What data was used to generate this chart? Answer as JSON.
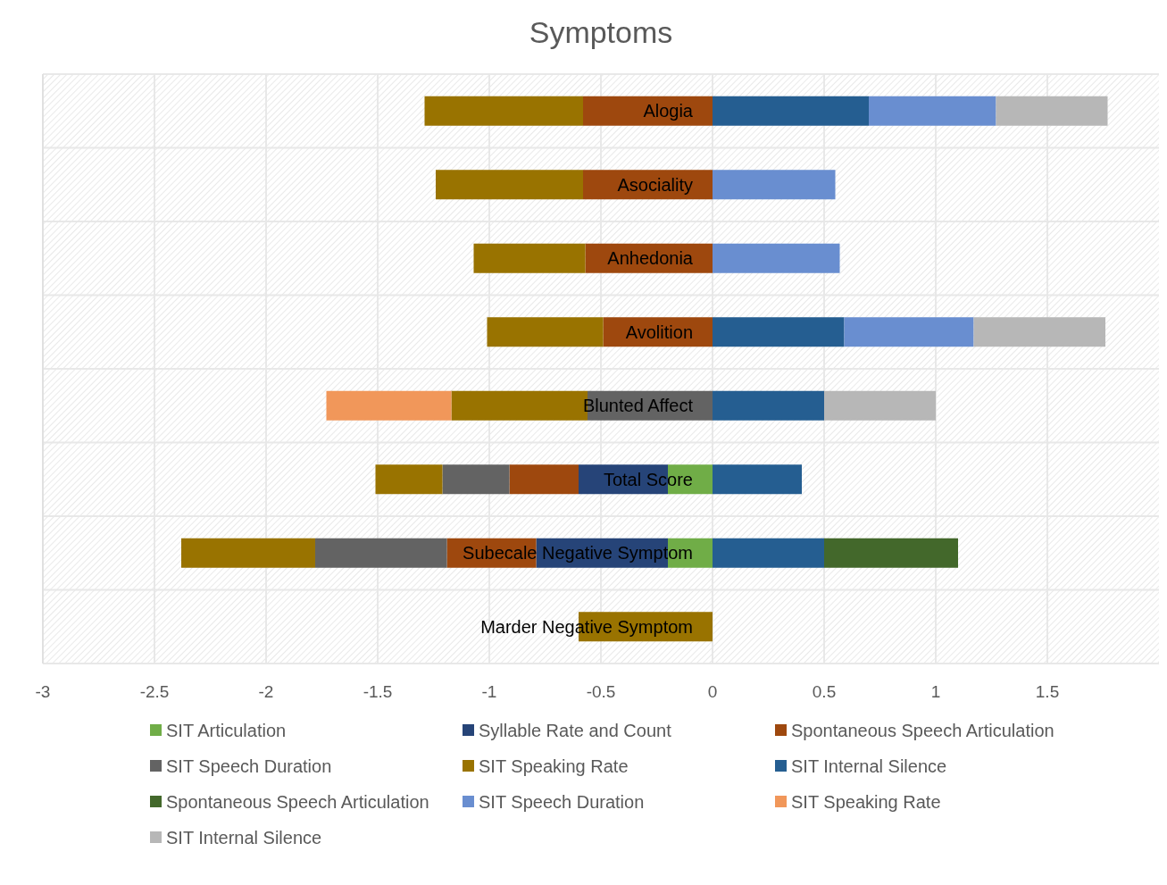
{
  "chart_data": {
    "type": "bar",
    "title": "Symptoms",
    "orientation": "horizontal",
    "stacked": true,
    "grid": true,
    "legend": "bottom",
    "categories": [
      "Alogia",
      "Asociality",
      "Anhedonia",
      "Avolition",
      "Blunted Affect",
      "Total Score",
      "Subecale Negative Symptom",
      "Marder Negative Symptom"
    ],
    "xlim": [
      -3,
      2
    ],
    "xticks": [
      -3,
      -2.5,
      -2,
      -1.5,
      -1,
      -0.5,
      0,
      0.5,
      1,
      1.5
    ],
    "series": [
      {
        "name": "SIT Articulation",
        "color": "#70ad47",
        "values": [
          null,
          null,
          null,
          null,
          null,
          -0.2,
          -0.2,
          null
        ]
      },
      {
        "name": "Syllable Rate and Count",
        "color": "#264478",
        "values": [
          null,
          null,
          null,
          null,
          null,
          -0.4,
          -0.59,
          null
        ]
      },
      {
        "name": "Spontaneous Speech Articulation",
        "color": "#9e480e",
        "values": [
          -0.58,
          -0.58,
          -0.57,
          -0.49,
          null,
          -0.31,
          -0.4,
          null
        ]
      },
      {
        "name": "SIT Speech Duration",
        "color": "#636363",
        "values": [
          null,
          null,
          null,
          null,
          -0.56,
          -0.3,
          -0.59,
          null
        ]
      },
      {
        "name": "SIT Speaking Rate",
        "color": "#997300",
        "values": [
          -0.71,
          -0.66,
          -0.5,
          -0.52,
          -0.61,
          -0.3,
          -0.6,
          -0.6
        ]
      },
      {
        "name": "SIT Internal Silence",
        "color": "#255e91",
        "values": [
          0.7,
          null,
          null,
          0.59,
          0.5,
          0.4,
          0.5,
          null
        ]
      },
      {
        "name": "Spontaneous Speech Articulation",
        "color": "#43682b",
        "values": [
          null,
          null,
          null,
          null,
          null,
          null,
          0.6,
          null
        ]
      },
      {
        "name": "SIT Speech Duration",
        "color": "#698ed0",
        "values": [
          0.57,
          0.55,
          0.57,
          0.58,
          null,
          null,
          null,
          null
        ]
      },
      {
        "name": "SIT Speaking Rate",
        "color": "#f1975a",
        "values": [
          null,
          null,
          null,
          null,
          -0.56,
          null,
          null,
          null
        ]
      },
      {
        "name": "SIT Internal Silence",
        "color": "#b7b7b7",
        "values": [
          0.5,
          null,
          null,
          0.59,
          0.5,
          null,
          null,
          null
        ]
      }
    ]
  }
}
